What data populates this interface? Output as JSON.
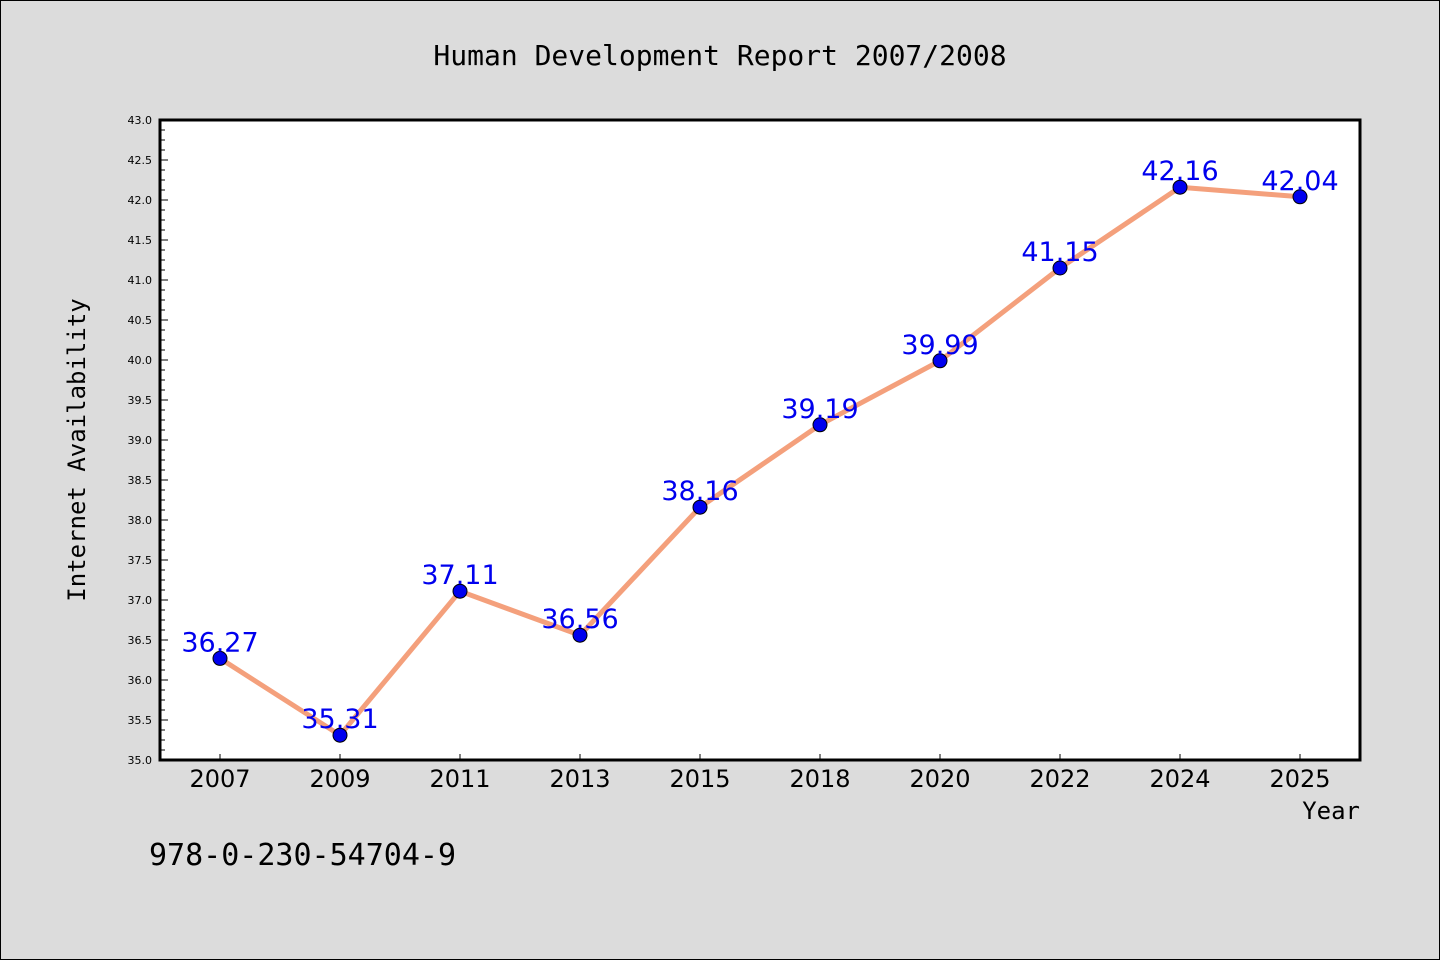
{
  "chart_data": {
    "type": "line",
    "title": "Human Development Report 2007/2008",
    "xlabel": "Year",
    "ylabel": "Internet Availability",
    "categories": [
      "2007",
      "2009",
      "2011",
      "2013",
      "2015",
      "2018",
      "2020",
      "2022",
      "2024",
      "2025"
    ],
    "series": [
      {
        "values": [
          36.27,
          35.31,
          37.11,
          36.56,
          38.16,
          39.19,
          39.99,
          41.15,
          42.16,
          42.04
        ]
      }
    ],
    "data_labels": [
      "36.27",
      "35.31",
      "37.11",
      "36.56",
      "38.16",
      "39.19",
      "39.99",
      "41.15",
      "42.16",
      "42.04"
    ],
    "ylim": [
      35.0,
      43.0
    ],
    "yticks": [
      "35.0",
      "35.5",
      "36.0",
      "36.5",
      "37.0",
      "37.5",
      "38.0",
      "38.5",
      "39.0",
      "39.5",
      "40.0",
      "40.5",
      "41.0",
      "41.5",
      "42.0",
      "42.5",
      "43.0"
    ],
    "grid": false,
    "legend": "none",
    "line_color": "#f4a07c",
    "marker_color": "#0000ee",
    "label_color": "#0000ee",
    "background_color": "#dcdcdc",
    "plot_background_color": "#ffffff"
  },
  "annotation": "978-0-230-54704-9"
}
